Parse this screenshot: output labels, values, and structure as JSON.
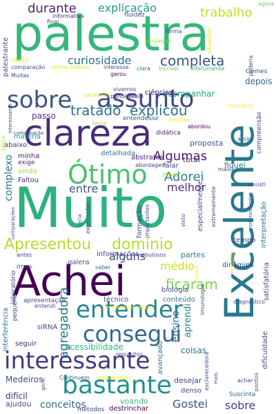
{
  "words": [
    {
      "text": "palestra",
      "color": "#35b779"
    },
    {
      "text": "Muito",
      "color": "#2db27d"
    },
    {
      "text": "Excelente",
      "color": "#2a788e"
    },
    {
      "text": "Achei",
      "color": "#440154"
    },
    {
      "text": "clareza",
      "color": "#472d7b"
    },
    {
      "text": "sobre",
      "color": "#3b528b"
    },
    {
      "text": "assunto",
      "color": "#3e4989"
    },
    {
      "text": "interessante",
      "color": "#443983"
    },
    {
      "text": "bastante",
      "color": "#21918c"
    },
    {
      "text": "entender",
      "color": "#25858e"
    },
    {
      "text": "consegui",
      "color": "#31688e"
    },
    {
      "text": "Ótimo",
      "color": "#4ac16d"
    },
    {
      "text": "Apresentou",
      "color": "#b5de2b"
    },
    {
      "text": "domínio",
      "color": "#b5de2b"
    },
    {
      "text": "tratado",
      "color": "#2c728e"
    },
    {
      "text": "explicou",
      "color": "#2c728e"
    },
    {
      "text": "completa",
      "color": "#3b528b"
    },
    {
      "text": "curiosidade",
      "color": "#2e6f8e"
    },
    {
      "text": "durante",
      "color": "#482475"
    },
    {
      "text": "explicação",
      "color": "#1f9e89"
    },
    {
      "text": "trabalho",
      "color": "#c2df23"
    },
    {
      "text": "ficaram",
      "color": "#7ad151"
    },
    {
      "text": "Algumas",
      "color": "#481a6c"
    },
    {
      "text": "Adorei",
      "color": "#287c8e"
    },
    {
      "text": "melhor",
      "color": "#46327e"
    },
    {
      "text": "entre",
      "color": "#3b528b"
    },
    {
      "text": "alguns",
      "color": "#3e4989"
    },
    {
      "text": "médio",
      "color": "#cae11f"
    },
    {
      "text": "agregadora",
      "color": "#2c728e"
    },
    {
      "text": "ensino",
      "color": "#2e6e8e"
    },
    {
      "text": "aprendi",
      "color": "#277f8e"
    },
    {
      "text": "sobre",
      "color": "#433e85"
    },
    {
      "text": "Gostei",
      "color": "#3b528b"
    },
    {
      "text": "conceitos",
      "color": "#31688e"
    },
    {
      "text": "complexo",
      "color": "#2c728e"
    },
    {
      "text": "acompanhar",
      "color": "#1fa187"
    },
    {
      "text": "depois",
      "color": "#31688e"
    },
    {
      "text": "passo",
      "color": "#46327e"
    },
    {
      "text": "ciências",
      "color": "#440154"
    },
    {
      "text": "Início",
      "color": "#433e85"
    },
    {
      "text": "entendesse",
      "color": "#3b528b"
    },
    {
      "text": "didática",
      "color": "#481f70"
    },
    {
      "text": "proposta",
      "color": "#3b528b"
    },
    {
      "text": "total",
      "color": "#46327e"
    },
    {
      "text": "fiquei",
      "color": "#2c728e"
    },
    {
      "text": "falar",
      "color": "#3e4989"
    },
    {
      "text": "rever",
      "color": "#a0da39"
    },
    {
      "text": "minha",
      "color": "#481b6d"
    },
    {
      "text": "exige",
      "color": "#482173"
    },
    {
      "text": "ainda",
      "color": "#9bd93c"
    },
    {
      "text": "Faltou",
      "color": "#472d7b"
    },
    {
      "text": "abstratas",
      "color": "#482475"
    },
    {
      "text": "detalhada",
      "color": "#2a788e"
    },
    {
      "text": "matéria",
      "color": "#1fa187"
    },
    {
      "text": "abaixo",
      "color": "#46327e"
    },
    {
      "text": "teria",
      "color": "#aadc32"
    },
    {
      "text": "informações",
      "color": "#3e4989"
    },
    {
      "text": "galera",
      "color": "#3b528b"
    },
    {
      "text": "partes",
      "color": "#287c8e"
    },
    {
      "text": "dinâmica",
      "color": "#3e4989"
    },
    {
      "text": "tempo",
      "color": "#3e4989"
    },
    {
      "text": "biologia",
      "color": "#3e4989"
    },
    {
      "text": "conteúdo",
      "color": "#2c728e"
    },
    {
      "text": "técnico",
      "color": "#3e4989"
    },
    {
      "text": "apresentação",
      "color": "#3e4989"
    },
    {
      "text": "acessibilidade",
      "color": "#35b779"
    },
    {
      "text": "seguir",
      "color": "#482475"
    },
    {
      "text": "siRNA",
      "color": "#3e4989"
    },
    {
      "text": "coisas",
      "color": "#2c728e"
    },
    {
      "text": "avançado",
      "color": "#31688e"
    },
    {
      "text": "desejar",
      "color": "#3e4989"
    },
    {
      "text": "denso",
      "color": "#3e4989"
    },
    {
      "text": "Medeiros",
      "color": "#3b528b"
    },
    {
      "text": "difícil",
      "color": "#481f70"
    },
    {
      "text": "ajudou",
      "color": "#3e4989"
    },
    {
      "text": "voando",
      "color": "#35b779"
    },
    {
      "text": "destrinchar",
      "color": "#440154"
    },
    {
      "text": "métodos",
      "color": "#3e4989"
    },
    {
      "text": "Suscinta",
      "color": "#31688e"
    },
    {
      "text": "Continuem",
      "color": "#3b528b"
    },
    {
      "text": "laboratoriais",
      "color": "#fde725"
    },
    {
      "text": "fluidez",
      "color": "#3e4989"
    },
    {
      "text": "informativa",
      "color": "#46327e"
    },
    {
      "text": "final",
      "color": "#3e4989"
    },
    {
      "text": "forma",
      "color": "#3e4989"
    },
    {
      "text": "conseguir",
      "color": "#a0da39"
    },
    {
      "text": "agora",
      "color": "#6ccd5a"
    },
    {
      "text": "situações",
      "color": "#e5e419"
    },
    {
      "text": "Gomes",
      "color": "#3e4989"
    },
    {
      "text": "comparação",
      "color": "#3e4989"
    },
    {
      "text": "conhecimento",
      "color": "#e5e419"
    },
    {
      "text": "interesse",
      "color": "#3e4989"
    },
    {
      "text": "clara",
      "color": "#2c728e"
    },
    {
      "text": "Incrível",
      "color": "#5ec962"
    },
    {
      "text": "infelizmente",
      "color": "#35b779"
    },
    {
      "text": "vivemos",
      "color": "#3e4989"
    },
    {
      "text": "pandemia",
      "color": "#46327e"
    },
    {
      "text": "gerou",
      "color": "#440154"
    },
    {
      "text": "parabéns",
      "color": "#e5e419"
    },
    {
      "text": "momento",
      "color": "#fde725"
    },
    {
      "text": "vacinas",
      "color": "#fde725"
    },
    {
      "text": "abordou",
      "color": "#440154"
    },
    {
      "text": "compreensão",
      "color": "#3e4989"
    },
    {
      "text": "assim",
      "color": "#3e4989"
    },
    {
      "text": "computação",
      "color": "#3e4989"
    },
    {
      "text": "básica",
      "color": "#b5de2b"
    },
    {
      "text": "abordagem",
      "color": "#3e4989"
    },
    {
      "text": "maior",
      "color": "#3e4989"
    },
    {
      "text": "assisti",
      "color": "#3e4989"
    },
    {
      "text": "impressionante",
      "color": "#31688e"
    },
    {
      "text": "extremamente",
      "color": "#3e4989"
    },
    {
      "text": "interpretação",
      "color": "#2c728e"
    },
    {
      "text": "especialmente",
      "color": "#3e4989"
    },
    {
      "text": "formação",
      "color": "#3e4989"
    },
    {
      "text": "importantes",
      "color": "#3e4989"
    },
    {
      "text": "visto",
      "color": "#3e4989"
    },
    {
      "text": "seria",
      "color": "#31688e"
    },
    {
      "text": "explicações",
      "color": "#3e4989"
    },
    {
      "text": "comparações",
      "color": "#3e4989"
    },
    {
      "text": "nebulosos",
      "color": "#3e4989"
    },
    {
      "text": "desportar",
      "color": "#fde725"
    },
    {
      "text": "objetiva",
      "color": "#fde725"
    },
    {
      "text": "satisfatória",
      "color": "#3e4989"
    },
    {
      "text": "antes",
      "color": "#3e4989"
    },
    {
      "text": "ÓTIMA",
      "color": "#3e4989"
    },
    {
      "text": "saber",
      "color": "#31688e"
    },
    {
      "text": "laboratório",
      "color": "#3e4989"
    },
    {
      "text": "interferência",
      "color": "#2c728e"
    },
    {
      "text": "pequeno",
      "color": "#3e4989"
    },
    {
      "text": "entendi",
      "color": "#3e4989"
    },
    {
      "text": "simultaneamente",
      "color": "#fde725"
    },
    {
      "text": "diagnóstico",
      "color": "#3e4989"
    },
    {
      "text": "imunologia",
      "color": "#3e4989"
    },
    {
      "text": "requisitos",
      "color": "#3e4989"
    },
    {
      "text": "esclarecedora",
      "color": "#3e4989"
    },
    {
      "text": "dificuldade",
      "color": "#3e4989"
    },
    {
      "text": "pontos",
      "color": "#3e4989"
    },
    {
      "text": "achar",
      "color": "#3e4989"
    },
    {
      "text": "mais",
      "color": "#3e4989"
    },
    {
      "text": "poderia",
      "color": "#3e4989"
    },
    {
      "text": "geral",
      "color": "#3e4989"
    },
    {
      "text": "Muitas",
      "color": "#3e4989"
    },
    {
      "text": "razão",
      "color": "#fde725"
    },
    {
      "text": "palestrante",
      "color": "#3e4989"
    },
    {
      "text": "interessante",
      "color": "#3e4989"
    }
  ]
}
